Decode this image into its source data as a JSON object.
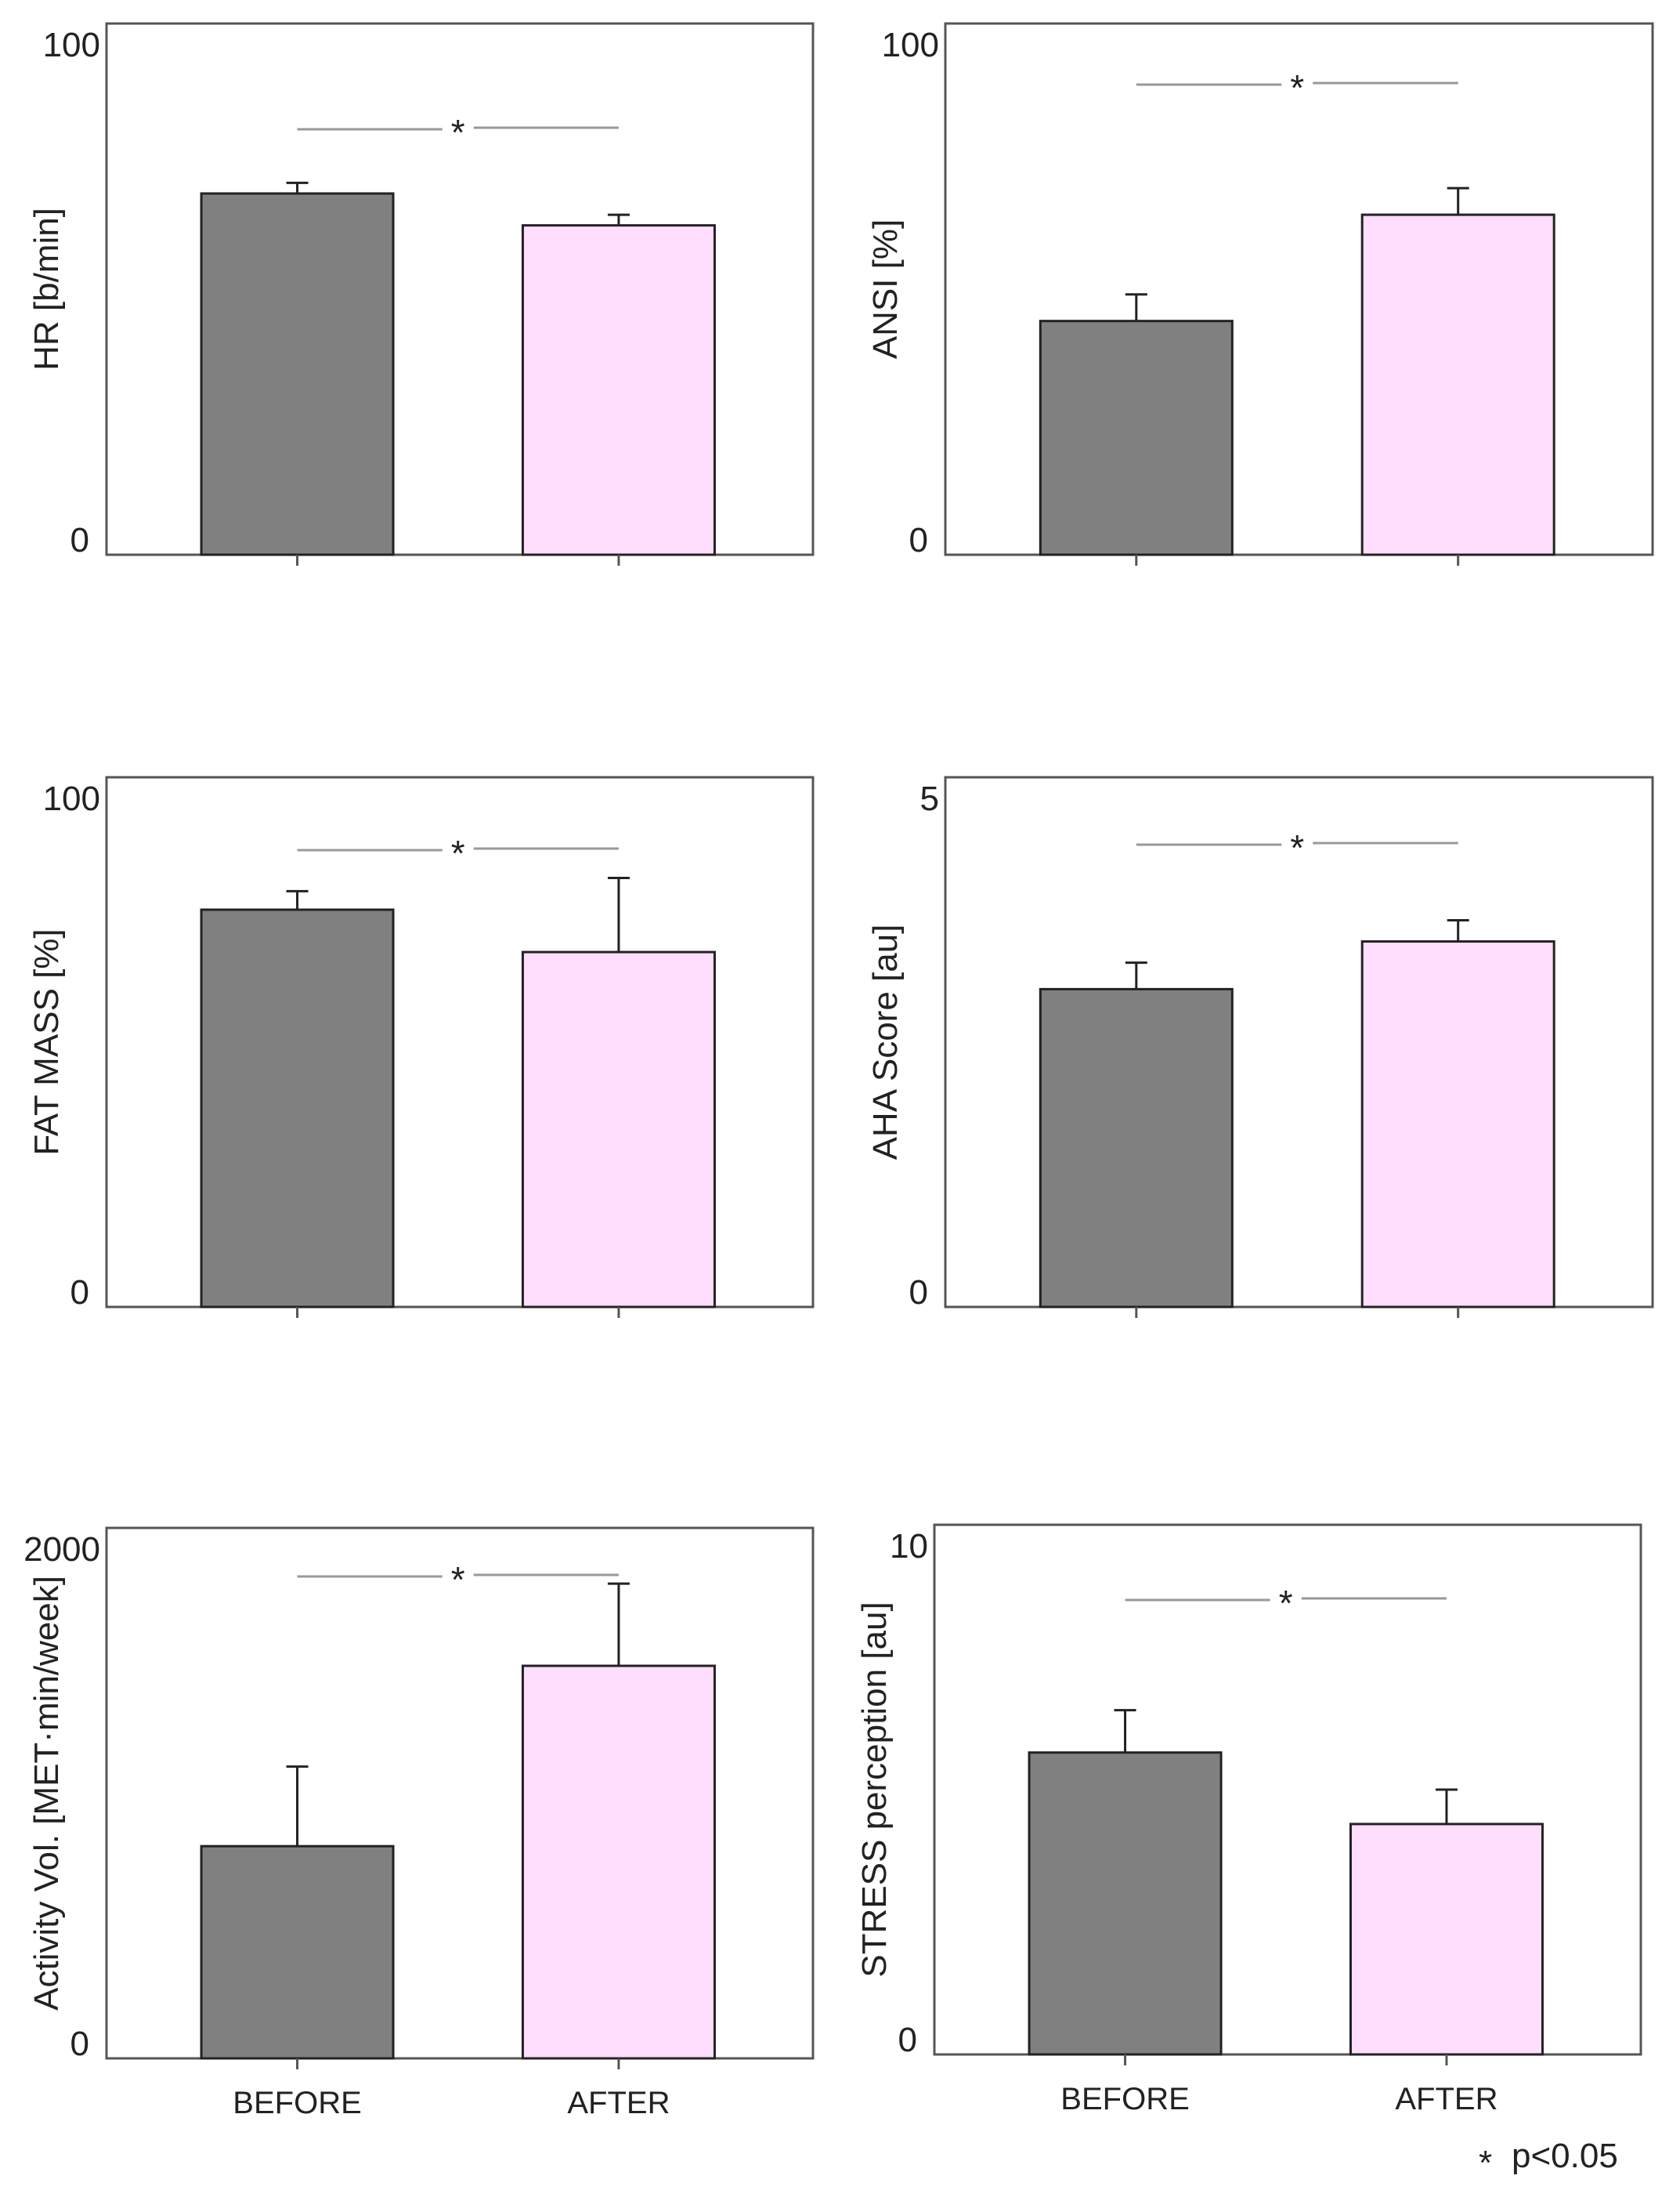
{
  "chart_data": [
    {
      "type": "bar",
      "ylabel": "HR [b/min]",
      "ylim": [
        0,
        100
      ],
      "yticks": [
        "0",
        "100"
      ],
      "categories": [
        "BEFORE",
        "AFTER"
      ],
      "values": [
        68,
        62
      ],
      "errors": [
        2,
        2
      ],
      "significance": "*",
      "show_category_labels": false
    },
    {
      "type": "bar",
      "ylabel": "ANSI [%]",
      "ylim": [
        0,
        100
      ],
      "yticks": [
        "0",
        "100"
      ],
      "categories": [
        "BEFORE",
        "AFTER"
      ],
      "values": [
        44,
        64
      ],
      "errors": [
        5,
        5
      ],
      "significance": "*",
      "show_category_labels": false
    },
    {
      "type": "bar",
      "ylabel": "FAT MASS [%]",
      "ylim": [
        0,
        100
      ],
      "yticks": [
        "0",
        "100"
      ],
      "categories": [
        "BEFORE",
        "AFTER"
      ],
      "values": [
        75,
        67
      ],
      "errors": [
        3.5,
        14
      ],
      "significance": "*",
      "show_category_labels": false
    },
    {
      "type": "bar",
      "ylabel": "AHA Score [au]",
      "ylim": [
        0,
        5
      ],
      "yticks": [
        "0",
        "5"
      ],
      "categories": [
        "BEFORE",
        "AFTER"
      ],
      "values": [
        3.0,
        3.45
      ],
      "errors": [
        0.25,
        0.2
      ],
      "significance": "*",
      "show_category_labels": false
    },
    {
      "type": "bar",
      "ylabel": "Activity Vol. [MET·min/week]",
      "ylim": [
        0,
        2000
      ],
      "yticks": [
        "0",
        "2000"
      ],
      "categories": [
        "BEFORE",
        "AFTER"
      ],
      "values": [
        800,
        1480
      ],
      "errors": [
        300,
        310
      ],
      "significance": "*",
      "show_category_labels": true
    },
    {
      "type": "bar",
      "ylabel": "STRESS perception [au]",
      "ylim": [
        0,
        10
      ],
      "yticks": [
        "0",
        "10"
      ],
      "categories": [
        "BEFORE",
        "AFTER"
      ],
      "values": [
        5.7,
        4.35
      ],
      "errors": [
        0.8,
        0.65
      ],
      "significance": "*",
      "show_category_labels": true
    }
  ],
  "legend": {
    "symbol": "*",
    "text": "p<0.05"
  },
  "colors": {
    "before_fill": "#808080",
    "after_fill": "#ffddfc",
    "bar_stroke": "#222222",
    "frame": "#555555",
    "significance_line": "#999999"
  }
}
